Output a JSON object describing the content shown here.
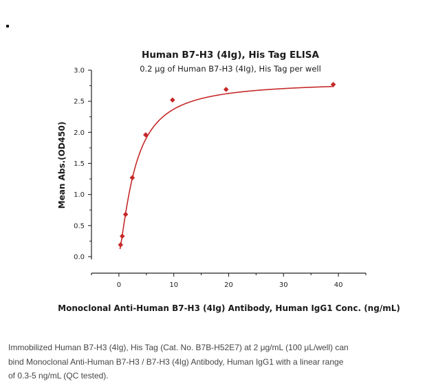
{
  "chart_data": {
    "type": "scatter",
    "title": "Human B7-H3 (4Ig), His Tag ELISA",
    "subtitle": "0.2 μg of Human B7-H3 (4Ig), His Tag per well",
    "xlabel": "Monoclonal Anti-Human B7-H3 (4Ig) Antibody, Human IgG1 Conc. (ng/mL)",
    "ylabel": "Mean Abs.(OD450)",
    "xlim": [
      -5,
      45
    ],
    "ylim": [
      0,
      3.0
    ],
    "x_ticks": [
      "0",
      "10",
      "20",
      "30",
      "40"
    ],
    "x_tick_values": [
      0,
      10,
      20,
      30,
      40
    ],
    "y_ticks": [
      "0.0",
      "0.5",
      "1.0",
      "1.5",
      "2.0",
      "2.5",
      "3.0"
    ],
    "y_tick_values": [
      0,
      0.5,
      1.0,
      1.5,
      2.0,
      2.5,
      3.0
    ],
    "series": [
      {
        "x": [
          0.305,
          0.61,
          1.22,
          2.44,
          4.88,
          9.77,
          19.53,
          39.06
        ],
        "y": [
          0.19,
          0.33,
          0.68,
          1.27,
          1.96,
          2.52,
          2.69,
          2.77
        ],
        "fit": "4PL",
        "color": "#c62828"
      }
    ],
    "grid": false,
    "legend": "none"
  },
  "caption": {
    "lines": [
      "Immobilized Human B7-H3 (4Ig), His Tag (Cat. No. B7B-H52E7) at 2 μg/mL (100 μL/well) can",
      "bind Monoclonal Anti-Human B7-H3 / B7-H3 (4Ig) Antibody, Human IgG1 with a linear range",
      "of 0.3-5 ng/mL (QC tested)."
    ]
  },
  "colors": {
    "series": "#c62828",
    "axis": "#222222",
    "caption": "#444444"
  }
}
